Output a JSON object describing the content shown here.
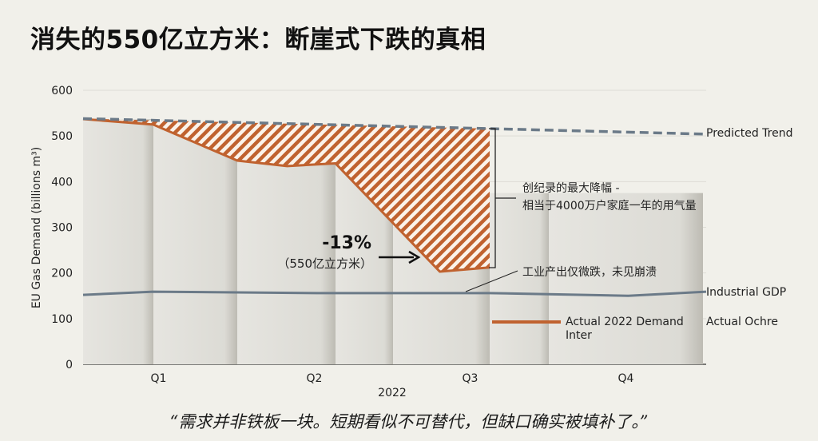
{
  "title": "消失的550亿立方米：断崖式下跌的真相",
  "quote": "“需求并非铁板一块。短期看似不可替代，但缺口确实被填补了。”",
  "colors": {
    "background": "#f1f0ea",
    "actual": "#c0622f",
    "predicted": "#6b7a88",
    "industrial": "#6b7a88",
    "hatch_bg": "#fbf3ea"
  },
  "chart_data": {
    "type": "line",
    "title": "",
    "xlabel": "2022",
    "ylabel": "EU Gas Demand (billions m³)",
    "ylim": [
      0,
      600
    ],
    "yticks": [
      0,
      100,
      200,
      300,
      400,
      500,
      600
    ],
    "xlim": [
      0,
      4
    ],
    "categories": [
      "Q1",
      "Q2",
      "Q3",
      "Q4"
    ],
    "grid": true,
    "series": [
      {
        "name": "Predicted Trend",
        "style": "dashed",
        "x": [
          0,
          2.61,
          4
        ],
        "y": [
          538,
          516,
          504
        ]
      },
      {
        "name": "Actual 2022 Demand",
        "style": "solid",
        "x": [
          0,
          0.45,
          0.99,
          1.31,
          1.62,
          2.29,
          2.61
        ],
        "y": [
          537,
          525,
          446,
          434,
          440,
          203,
          212
        ]
      },
      {
        "name": "Industrial GDP",
        "style": "solid",
        "x": [
          0,
          0.45,
          1.5,
          2.61,
          3.5,
          4
        ],
        "y": [
          152,
          159,
          156,
          156,
          150,
          159
        ]
      }
    ],
    "shaded_gap": "hatched area between Predicted Trend and Actual 2022 Demand",
    "legend": {
      "line_label": "Actual 2022 Demand",
      "line_label_2": "Inter",
      "side_label": "Actual Ochre"
    },
    "annotations": {
      "drop_pct": "-13%",
      "drop_volume": "（550亿立方米）",
      "bracket_line1": "创纪录的最大降幅 -",
      "bracket_line2": "相当于4000万户家庭一年的用气量",
      "industry_note": "工业产出仅微跌，未见崩溃"
    }
  }
}
